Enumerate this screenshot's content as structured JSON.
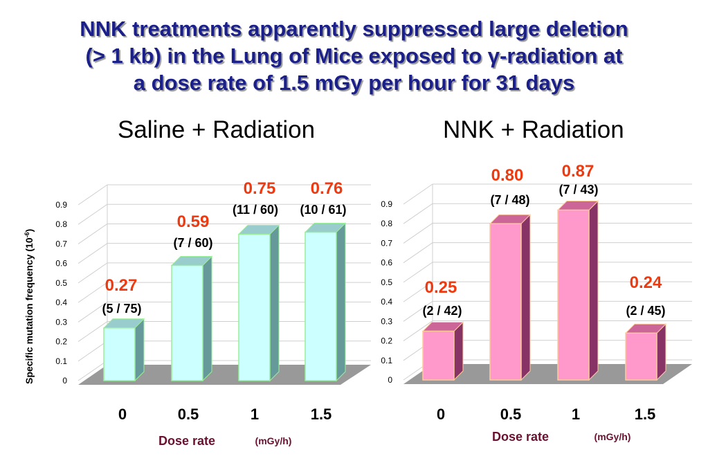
{
  "title_lines": [
    "NNK treatments apparently suppressed large deletion",
    "(> 1 kb) in the Lung of Mice exposed to γ-radiation at",
    "a dose rate of 1.5 mGy per hour for 31 days"
  ],
  "ylabel_text": "Specific mutation frequency (10",
  "ylabel_sup": "-6",
  "ylabel_close": ")",
  "colors": {
    "title": "#1a1f8a",
    "value_label": "#ee3a10",
    "axis_label": "#6b1030",
    "saline_bar_front": "#ccffff",
    "saline_bar_top": "#99cccc",
    "saline_bar_side": "#669999",
    "saline_bar_edge": "#99ee99",
    "nnk_bar_front": "#ff99cc",
    "nnk_bar_top": "#cc6699",
    "nnk_bar_side": "#883366",
    "nnk_bar_edge": "#ffcc99",
    "floor": "#999999"
  },
  "chart_data": [
    {
      "type": "bar",
      "title": "Saline + Radiation",
      "categories": [
        "0",
        "0.5",
        "1",
        "1.5"
      ],
      "values": [
        0.27,
        0.59,
        0.75,
        0.76
      ],
      "value_labels": [
        "0.27",
        "0.59",
        "0.75",
        "0.76"
      ],
      "count_labels": [
        "(5 / 75)",
        "(7 / 60)",
        "(11 / 60)",
        "(10 / 61)"
      ],
      "ylim": [
        0,
        0.9
      ],
      "yticks": [
        "0",
        "0.1",
        "0.2",
        "0.3",
        "0.4",
        "0.5",
        "0.6",
        "0.7",
        "0.8",
        "0.9"
      ],
      "xlabel": "Dose rate",
      "xunit": "(mGy/h)",
      "ylabel": "Specific mutation frequency (10-6)",
      "grid": true
    },
    {
      "type": "bar",
      "title": "NNK + Radiation",
      "categories": [
        "0",
        "0.5",
        "1",
        "1.5"
      ],
      "values": [
        0.25,
        0.8,
        0.87,
        0.24
      ],
      "value_labels": [
        "0.25",
        "0.80",
        "0.87",
        "0.24"
      ],
      "count_labels": [
        "(2 / 42)",
        "(7 / 48)",
        "(7 / 43)",
        "(2 / 45)"
      ],
      "ylim": [
        0,
        0.9
      ],
      "yticks": [
        "0",
        "0.1",
        "0.2",
        "0.3",
        "0.4",
        "0.5",
        "0.6",
        "0.7",
        "0.8",
        "0.9"
      ],
      "xlabel": "Dose rate",
      "xunit": "(mGy/h)",
      "grid": true
    }
  ]
}
